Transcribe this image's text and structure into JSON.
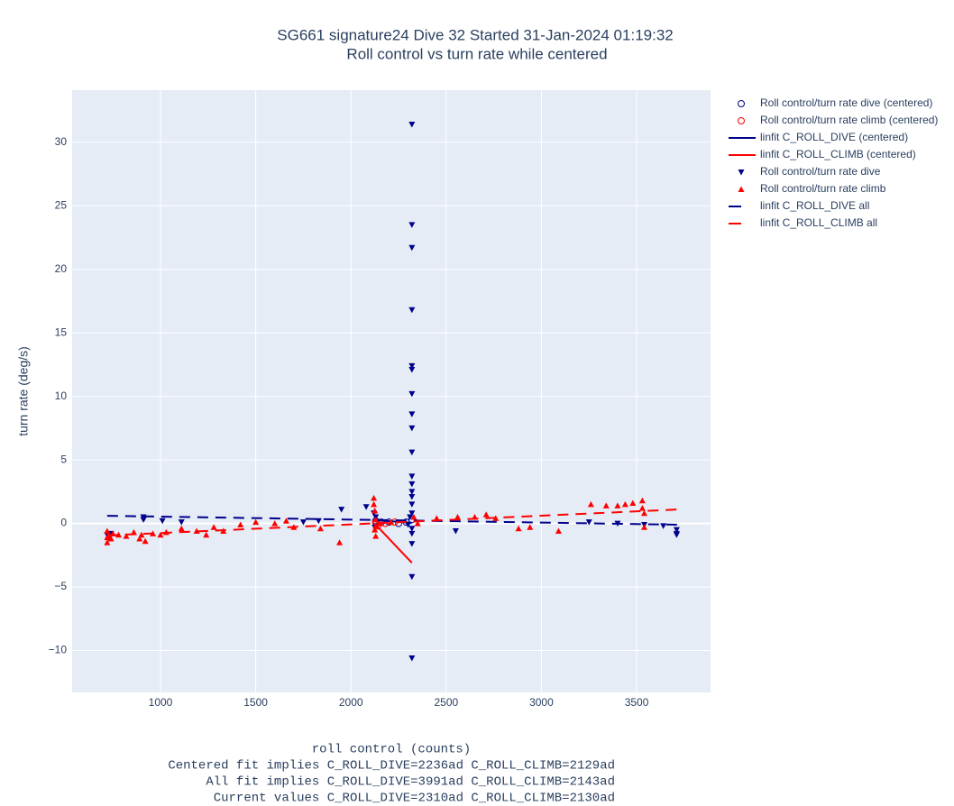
{
  "chart_data": {
    "type": "scatter",
    "title": "SG661 signature24 Dive 32 Started 31-Jan-2024 01:19:32",
    "subtitle": "Roll control vs turn rate while centered",
    "x_label": "roll control (counts)",
    "y_label": "turn rate (deg/s)",
    "annotations": [
      "Centered fit implies C_ROLL_DIVE=2236ad C_ROLL_CLIMB=2129ad",
      "All fit implies C_ROLL_DIVE=3991ad C_ROLL_CLIMB=2143ad",
      "Current values C_ROLL_DIVE=2310ad C_ROLL_CLIMB=2130ad"
    ],
    "xlim": [
      536,
      3888
    ],
    "ylim": [
      -13.3,
      34.1
    ],
    "xticks": [
      1000,
      1500,
      2000,
      2500,
      3000,
      3500
    ],
    "yticks": [
      {
        "value": -10,
        "label": "−10"
      },
      {
        "value": -5,
        "label": "−5"
      },
      0,
      5,
      10,
      15,
      20,
      25,
      30
    ],
    "grid": true,
    "legend": "outside-right",
    "series": [
      {
        "name": "Roll control/turn rate dive (centered)",
        "color": "#00008b",
        "symbol": "circle-open",
        "x": [
          2130,
          2160,
          2200,
          2250,
          2290,
          2320
        ],
        "values": [
          0.2,
          0.1,
          0.1,
          0.0,
          0.1,
          0.3
        ]
      },
      {
        "name": "Roll control/turn rate climb (centered)",
        "color": "#ff0000",
        "symbol": "circle-open",
        "x": [
          2130,
          2140,
          2180,
          2230
        ],
        "values": [
          0.1,
          -0.2,
          0.0,
          0.1
        ]
      },
      {
        "name": "linfit C_ROLL_DIVE (centered)",
        "color": "#00008b",
        "symbol": "line",
        "x": [
          2130,
          2320
        ],
        "values": [
          0.25,
          0.05
        ]
      },
      {
        "name": "linfit C_ROLL_CLIMB (centered)",
        "color": "#ff0000",
        "symbol": "line",
        "x": [
          2130,
          2320
        ],
        "values": [
          -0.1,
          -3.1
        ]
      },
      {
        "name": "Roll control/turn rate dive",
        "color": "#00008b",
        "symbol": "triangle-down",
        "x": [
          720,
          730,
          740,
          910,
          910,
          915,
          1010,
          1110,
          1750,
          1830,
          1950,
          2080,
          2120,
          2125,
          2130,
          2320,
          2320,
          2320,
          2320,
          2320,
          2320,
          2320,
          2320,
          2320,
          2320,
          2320,
          2320,
          2320,
          2320,
          2320,
          2320,
          2320,
          2320,
          2320,
          2320,
          2320,
          2310,
          2300,
          2550,
          3250,
          3400,
          3540,
          3640,
          3710,
          3710,
          3710
        ],
        "values": [
          -0.9,
          -1.2,
          -0.8,
          0.3,
          0.5,
          0.4,
          0.2,
          0.1,
          0.1,
          0.2,
          1.1,
          1.3,
          0.8,
          -0.3,
          0.5,
          31.4,
          23.5,
          21.7,
          16.8,
          12.4,
          12.1,
          10.2,
          8.6,
          7.5,
          5.6,
          3.7,
          3.1,
          2.5,
          2.1,
          1.5,
          0.8,
          -0.4,
          -0.8,
          -1.6,
          -4.2,
          -10.6,
          0.5,
          -0.1,
          -0.6,
          0.1,
          0.0,
          -0.1,
          -0.2,
          -0.5,
          -0.8,
          -0.9
        ]
      },
      {
        "name": "Roll control/turn rate climb",
        "color": "#ff0000",
        "symbol": "triangle-up",
        "x": [
          720,
          720,
          720,
          730,
          740,
          750,
          780,
          820,
          860,
          890,
          900,
          920,
          960,
          1000,
          1030,
          1110,
          1190,
          1240,
          1280,
          1330,
          1420,
          1500,
          1600,
          1660,
          1700,
          1840,
          1940,
          2120,
          2120,
          2125,
          2125,
          2130,
          2130,
          2130,
          2150,
          2210,
          2330,
          2350,
          2450,
          2560,
          2650,
          2710,
          2760,
          2880,
          2940,
          3090,
          3260,
          3340,
          3400,
          3440,
          3480,
          3530,
          3530,
          3540,
          3540
        ],
        "values": [
          -1.5,
          -1.1,
          -0.6,
          -0.9,
          -1.2,
          -0.8,
          -0.9,
          -1.0,
          -0.7,
          -1.2,
          -0.9,
          -1.4,
          -0.8,
          -0.9,
          -0.7,
          -0.4,
          -0.6,
          -0.9,
          -0.3,
          -0.6,
          -0.1,
          0.1,
          0.0,
          0.2,
          -0.3,
          -0.4,
          -1.5,
          2.0,
          1.5,
          1.0,
          -0.5,
          -1.0,
          0.3,
          -0.2,
          0.0,
          0.1,
          0.5,
          0.0,
          0.4,
          0.5,
          0.5,
          0.7,
          0.4,
          -0.4,
          -0.3,
          -0.6,
          1.5,
          1.4,
          1.4,
          1.5,
          1.6,
          1.8,
          1.2,
          -0.3,
          0.8
        ]
      },
      {
        "name": "linfit C_ROLL_DIVE all",
        "color": "#00008b",
        "symbol": "dash",
        "x": [
          720,
          3720
        ],
        "values": [
          0.6,
          -0.1
        ]
      },
      {
        "name": "linfit C_ROLL_CLIMB all",
        "color": "#ff0000",
        "symbol": "dash",
        "x": [
          720,
          3720
        ],
        "values": [
          -0.95,
          1.1
        ]
      }
    ]
  }
}
